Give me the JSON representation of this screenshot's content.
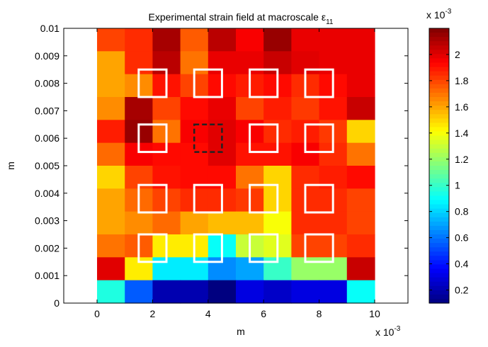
{
  "chart_data": {
    "type": "heatmap",
    "title": "Experimental strain field at macroscale ε",
    "title_subscript": "11",
    "xlabel": "m",
    "ylabel": "m",
    "x_multiplier": "x 10",
    "x_multiplier_exp": "-3",
    "colorbar_multiplier": "x 10",
    "colorbar_multiplier_exp": "-3",
    "xlim": [
      -0.0012,
      0.0112
    ],
    "ylim": [
      0,
      0.01
    ],
    "grid": false,
    "colormap": "jet",
    "color_range": [
      0.0001,
      0.0022
    ],
    "xticks": [
      {
        "v": 0.0,
        "label": "0"
      },
      {
        "v": 0.002,
        "label": "2"
      },
      {
        "v": 0.004,
        "label": "4"
      },
      {
        "v": 0.006,
        "label": "6"
      },
      {
        "v": 0.008,
        "label": "8"
      },
      {
        "v": 0.01,
        "label": "10"
      }
    ],
    "yticks": [
      {
        "v": 0.0,
        "label": "0"
      },
      {
        "v": 0.001,
        "label": "0.001"
      },
      {
        "v": 0.002,
        "label": "0.002"
      },
      {
        "v": 0.003,
        "label": "0.003"
      },
      {
        "v": 0.004,
        "label": "0.004"
      },
      {
        "v": 0.005,
        "label": "0.005"
      },
      {
        "v": 0.006,
        "label": "0.006"
      },
      {
        "v": 0.007,
        "label": "0.007"
      },
      {
        "v": 0.008,
        "label": "0.008"
      },
      {
        "v": 0.009,
        "label": "0.009"
      },
      {
        "v": 0.01,
        "label": "0.01"
      }
    ],
    "colorbar_ticks": [
      {
        "v": 0.0002,
        "label": "0.2"
      },
      {
        "v": 0.0004,
        "label": "0.4"
      },
      {
        "v": 0.0006,
        "label": "0.6"
      },
      {
        "v": 0.0008,
        "label": "0.8"
      },
      {
        "v": 0.001,
        "label": "1"
      },
      {
        "v": 0.0012,
        "label": "1.2"
      },
      {
        "v": 0.0014,
        "label": "1.4"
      },
      {
        "v": 0.0016,
        "label": "1.6"
      },
      {
        "v": 0.0018,
        "label": "1.8"
      },
      {
        "v": 0.002,
        "label": "2"
      }
    ],
    "grid_x_range": [
      0,
      0.01
    ],
    "grid_y_range": [
      0,
      0.01
    ],
    "values_scale": 0.001,
    "values_rows_top_to_bottom": [
      [
        1.8,
        1.85,
        2.12,
        1.75,
        2.08,
        1.95,
        2.15,
        1.98,
        1.98,
        1.98
      ],
      [
        1.6,
        1.85,
        2.08,
        1.7,
        1.98,
        1.98,
        2.05,
        2.0,
        1.98,
        1.98
      ],
      [
        1.6,
        1.65,
        1.9,
        1.8,
        1.92,
        1.88,
        1.92,
        1.85,
        1.92,
        1.98
      ],
      [
        1.65,
        2.12,
        1.8,
        1.92,
        1.98,
        1.8,
        1.88,
        1.82,
        1.9,
        2.05
      ],
      [
        1.88,
        2.15,
        1.7,
        1.95,
        2.0,
        1.95,
        1.85,
        1.88,
        1.82,
        1.5
      ],
      [
        1.72,
        1.95,
        1.92,
        1.92,
        2.0,
        1.9,
        1.9,
        1.95,
        1.85,
        1.7
      ],
      [
        1.5,
        1.8,
        1.9,
        1.92,
        1.92,
        1.7,
        1.5,
        1.85,
        1.88,
        1.92
      ],
      [
        1.6,
        1.72,
        1.8,
        1.85,
        1.85,
        1.82,
        1.5,
        1.85,
        1.85,
        1.8
      ],
      [
        1.6,
        1.65,
        1.72,
        1.6,
        1.55,
        1.55,
        1.4,
        1.85,
        1.85,
        1.8
      ],
      [
        1.7,
        1.75,
        1.45,
        1.45,
        0.9,
        1.3,
        1.35,
        1.8,
        1.8,
        1.85
      ],
      [
        2.0,
        1.45,
        0.85,
        0.85,
        0.65,
        0.7,
        1.0,
        1.2,
        1.2,
        2.05
      ],
      [
        0.95,
        0.55,
        0.2,
        0.2,
        0.1,
        0.3,
        0.25,
        0.3,
        0.3,
        0.9
      ]
    ],
    "annotations": {
      "solid_boxes": [
        {
          "x": 0.002,
          "y": 0.008
        },
        {
          "x": 0.004,
          "y": 0.008
        },
        {
          "x": 0.006,
          "y": 0.008
        },
        {
          "x": 0.008,
          "y": 0.008
        },
        {
          "x": 0.002,
          "y": 0.006
        },
        {
          "x": 0.006,
          "y": 0.006
        },
        {
          "x": 0.008,
          "y": 0.006
        },
        {
          "x": 0.002,
          "y": 0.0038
        },
        {
          "x": 0.004,
          "y": 0.0038
        },
        {
          "x": 0.006,
          "y": 0.0038
        },
        {
          "x": 0.008,
          "y": 0.0038
        },
        {
          "x": 0.002,
          "y": 0.002
        },
        {
          "x": 0.004,
          "y": 0.002
        },
        {
          "x": 0.006,
          "y": 0.002
        },
        {
          "x": 0.008,
          "y": 0.002
        }
      ],
      "dashed_boxes": [
        {
          "x": 0.004,
          "y": 0.006
        }
      ],
      "box_half_width": 0.0005,
      "solid_color": "#ffffff",
      "dashed_color": "#222222"
    }
  }
}
